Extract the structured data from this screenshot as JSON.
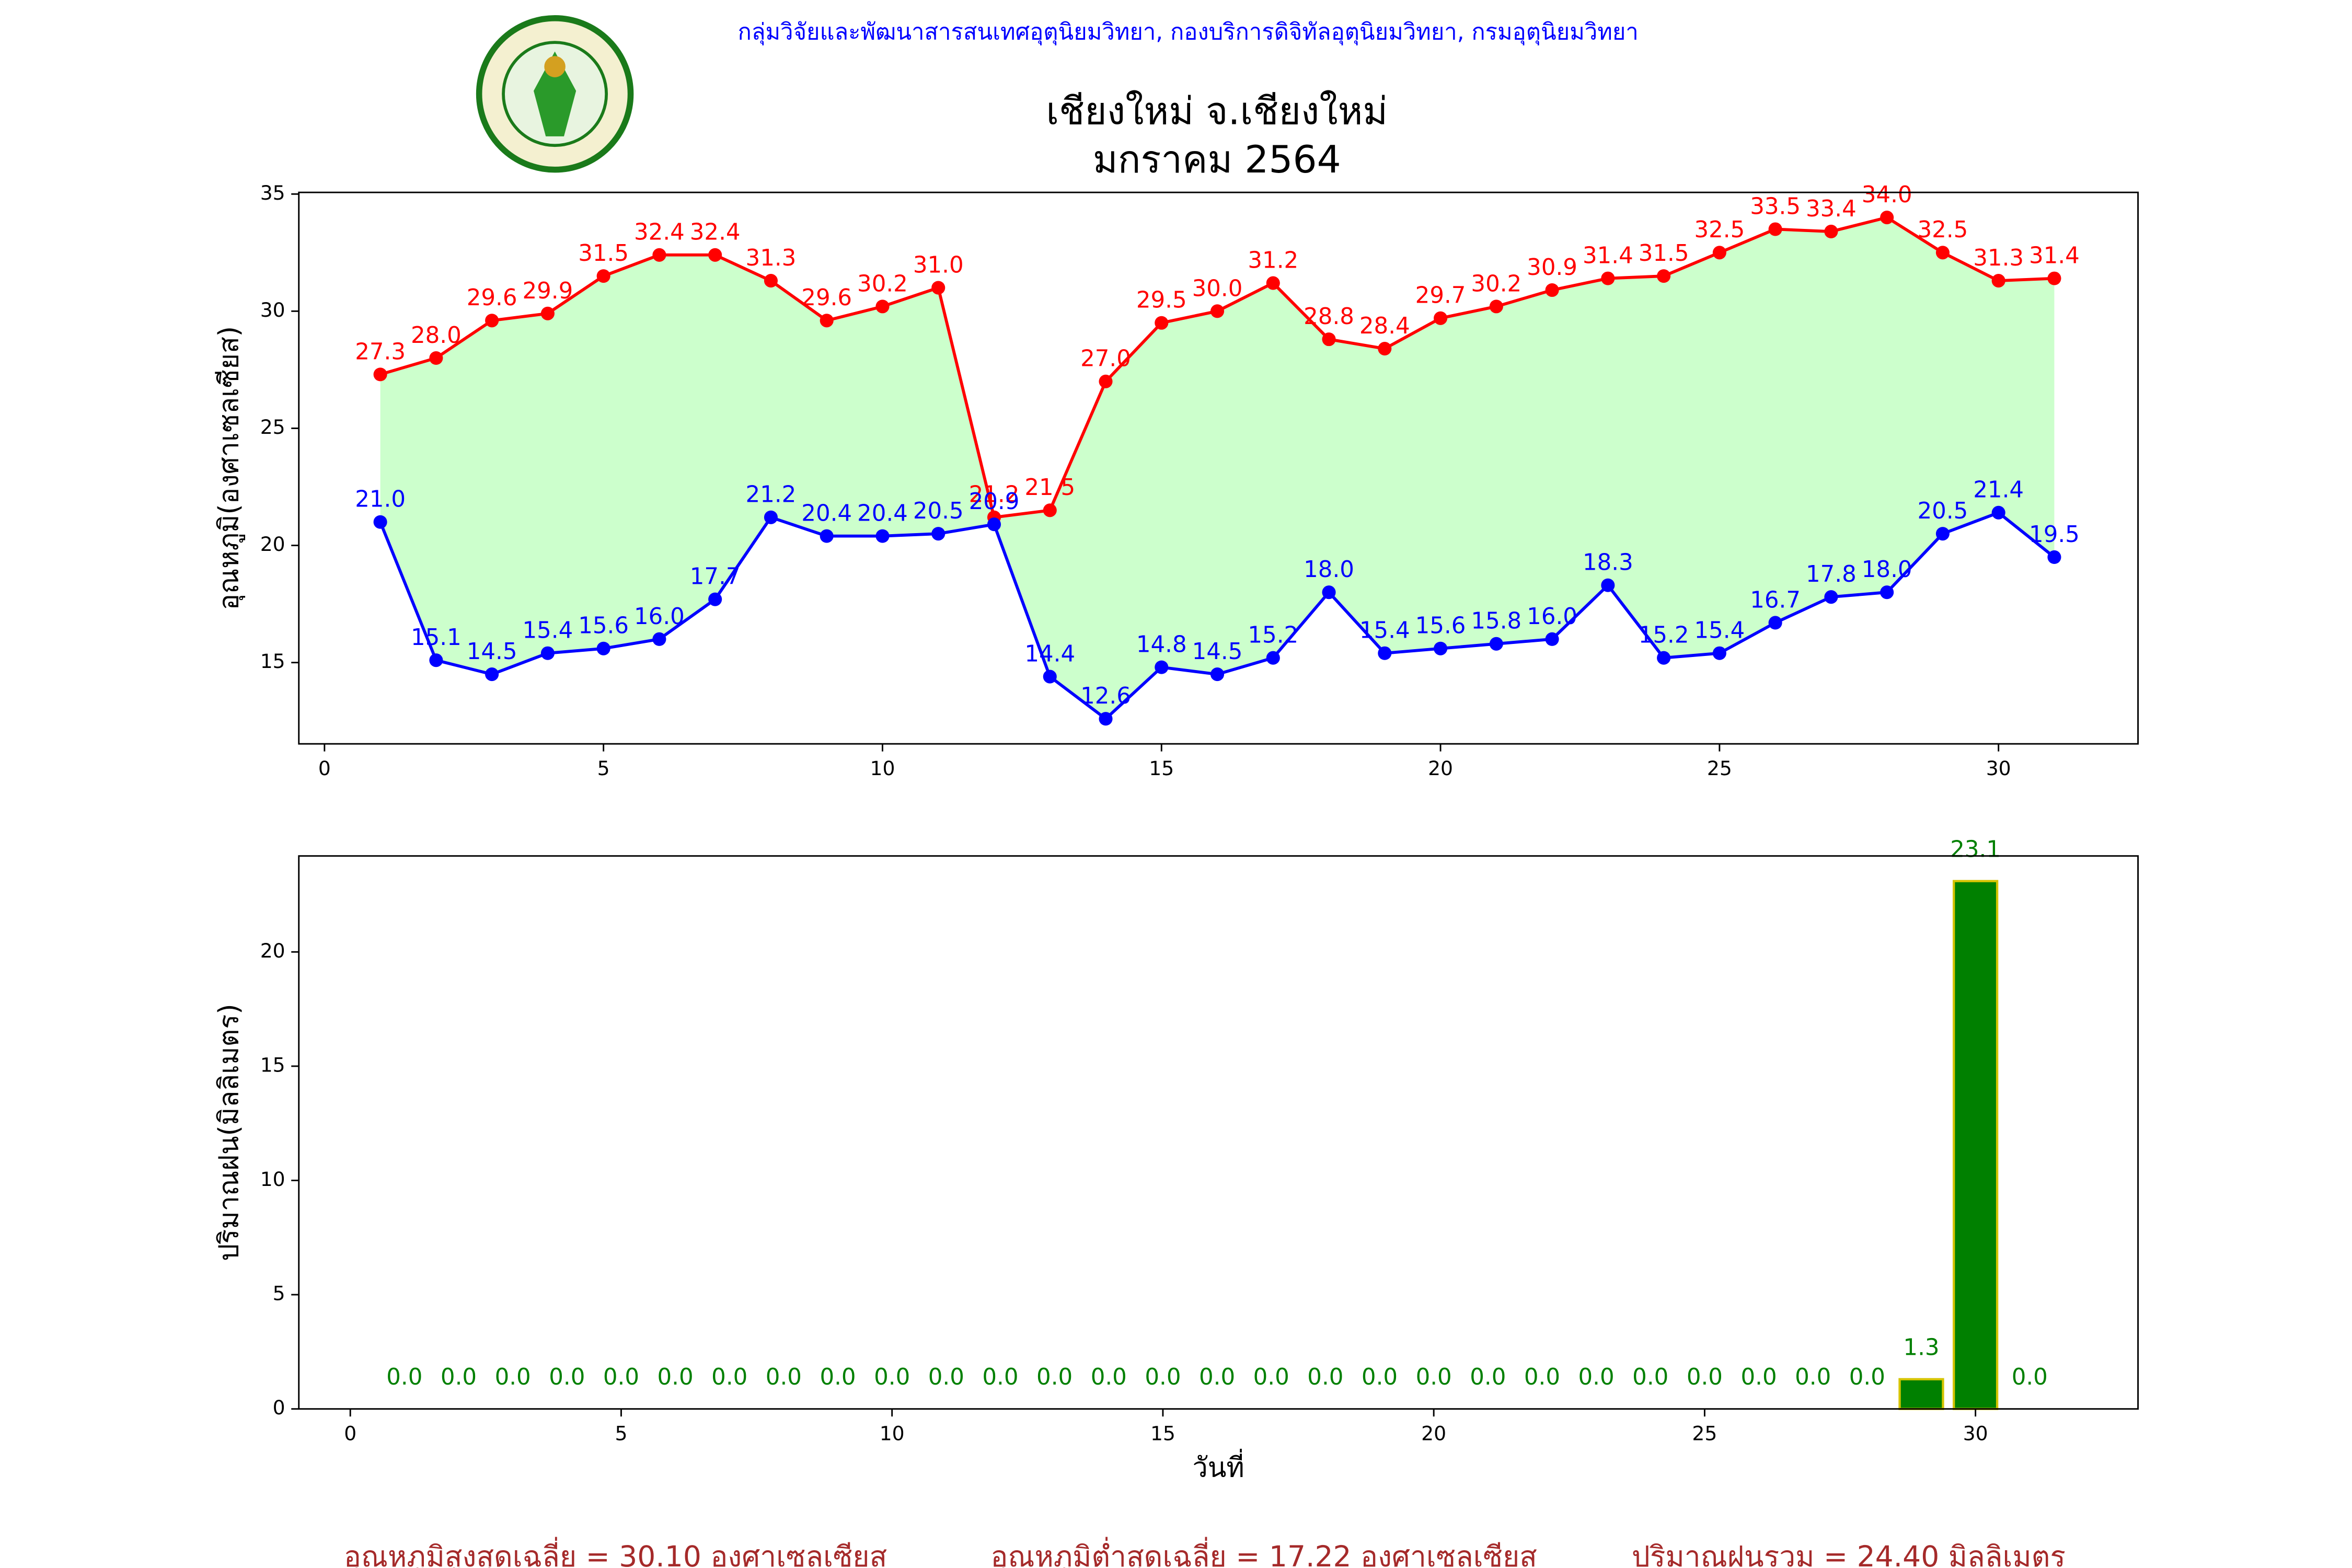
{
  "header": "กลุ่มวิจัยและพัฒนาสารสนเทศอุตุนิยมวิทยา, กองบริการดิจิทัลอุตุนิยมวิทยา, กรมอุตุนิยมวิทยา",
  "title": [
    "เชียงใหม่ จ.เชียงใหม่",
    "มกราคม 2564"
  ],
  "chart_data": [
    {
      "type": "line",
      "ylabel": "อุณหภูมิ(องศาเซลเซียส)",
      "x": [
        1,
        2,
        3,
        4,
        5,
        6,
        7,
        8,
        9,
        10,
        11,
        12,
        13,
        14,
        15,
        16,
        17,
        18,
        19,
        20,
        21,
        22,
        23,
        24,
        25,
        26,
        27,
        28,
        29,
        30,
        31
      ],
      "series": [
        {
          "name": "max",
          "color": "#ff0000",
          "values": [
            27.3,
            28.0,
            29.6,
            29.9,
            31.5,
            32.4,
            32.4,
            31.3,
            29.6,
            30.2,
            31.0,
            21.2,
            21.5,
            27.0,
            29.5,
            30.0,
            31.2,
            28.8,
            28.4,
            29.7,
            30.2,
            30.9,
            31.4,
            31.5,
            32.5,
            33.5,
            33.4,
            34.0,
            32.5,
            31.3,
            31.4
          ],
          "value_labels": [
            "27.3",
            "28.0",
            "29.6",
            "29.9",
            "31.5",
            "32.4",
            "32.4",
            "31.3",
            "29.6",
            "30.2",
            "31.0",
            "21.2",
            "21.5",
            "27.0",
            "29.5",
            "30.0",
            "31.2",
            "28.8",
            "28.4",
            "29.7",
            "30.2",
            "30.9",
            "31.4",
            "31.5",
            "32.5",
            "33.5",
            "33.4",
            "34.0",
            "32.5",
            "31.3",
            "31.4"
          ]
        },
        {
          "name": "min",
          "color": "#0000ff",
          "values": [
            21.0,
            15.1,
            14.5,
            15.4,
            15.6,
            16.0,
            17.7,
            21.2,
            20.4,
            20.4,
            20.5,
            20.9,
            14.4,
            12.6,
            14.8,
            14.5,
            15.2,
            18.0,
            15.4,
            15.6,
            15.8,
            16.0,
            18.3,
            15.2,
            15.4,
            16.7,
            17.8,
            18.0,
            20.5,
            21.4,
            19.5
          ],
          "value_labels": [
            "21.0",
            "15.1",
            "14.5",
            "15.4",
            "15.6",
            "16.0",
            "17.7",
            "21.2",
            "20.4",
            "20.4",
            "20.5",
            "20.9",
            "14.4",
            "12.6",
            "14.8",
            "14.5",
            "15.2",
            "18.0",
            "15.4",
            "15.6",
            "15.8",
            "16.0",
            "18.3",
            "15.2",
            "15.4",
            "16.7",
            "17.8",
            "18.0",
            "20.5",
            "21.4",
            "19.5"
          ]
        }
      ],
      "fill_color": "#ccffcc",
      "xlim": [
        -0.46,
        32.5
      ],
      "xticks": [
        0,
        5,
        10,
        15,
        20,
        25,
        30
      ],
      "ylim": [
        11.53,
        35.07
      ],
      "yticks": [
        15,
        20,
        25,
        30,
        35
      ]
    },
    {
      "type": "bar",
      "xlabel": "วันที่",
      "ylabel": "ปริมาณฝน(มิลลิเมตร)",
      "x": [
        1,
        2,
        3,
        4,
        5,
        6,
        7,
        8,
        9,
        10,
        11,
        12,
        13,
        14,
        15,
        16,
        17,
        18,
        19,
        20,
        21,
        22,
        23,
        24,
        25,
        26,
        27,
        28,
        29,
        30,
        31
      ],
      "values": [
        0,
        0,
        0,
        0,
        0,
        0,
        0,
        0,
        0,
        0,
        0,
        0,
        0,
        0,
        0,
        0,
        0,
        0,
        0,
        0,
        0,
        0,
        0,
        0,
        0,
        0,
        0,
        0,
        1.3,
        23.1,
        0
      ],
      "value_labels": [
        "0.0",
        "0.0",
        "0.0",
        "0.0",
        "0.0",
        "0.0",
        "0.0",
        "0.0",
        "0.0",
        "0.0",
        "0.0",
        "0.0",
        "0.0",
        "0.0",
        "0.0",
        "0.0",
        "0.0",
        "0.0",
        "0.0",
        "0.0",
        "0.0",
        "0.0",
        "0.0",
        "0.0",
        "0.0",
        "0.0",
        "0.0",
        "0.0",
        "1.3",
        "23.1",
        "0.0"
      ],
      "color": "#008000",
      "edge_color": "#d4c400",
      "xlim": [
        -0.95,
        33
      ],
      "xticks": [
        0,
        5,
        10,
        15,
        20,
        25,
        30
      ],
      "ylim": [
        0,
        24.2
      ],
      "yticks": [
        0,
        5,
        10,
        15,
        20
      ]
    }
  ],
  "footer": [
    "อุณหภูมิสูงสุดเฉลี่ย = 30.10 องศาเซลเซียส",
    "อุณหภูมิต่ำสุดเฉลี่ย = 17.22 องศาเซลเซียส",
    "ปริมาณฝนรวม = 24.40 มิลลิเมตร"
  ]
}
